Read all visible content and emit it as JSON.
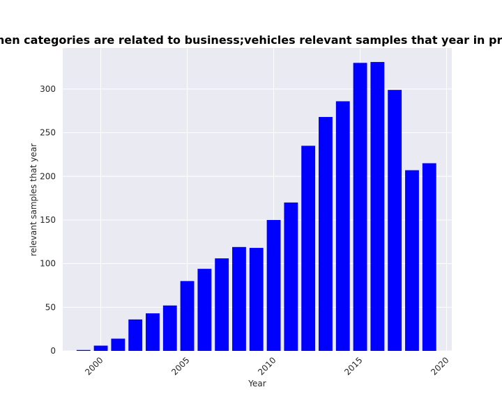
{
  "chart_data": {
    "type": "bar",
    "title": "Number of times when categories are related to business;vehicles relevant samples that year in privacy policies by year",
    "xlabel": "Year",
    "ylabel": "relevant samples that year",
    "x": [
      1999,
      2000,
      2001,
      2002,
      2003,
      2004,
      2005,
      2006,
      2007,
      2008,
      2009,
      2010,
      2011,
      2012,
      2013,
      2014,
      2015,
      2016,
      2017,
      2018,
      2019
    ],
    "values": [
      1,
      6,
      14,
      36,
      43,
      52,
      80,
      94,
      106,
      119,
      118,
      150,
      170,
      235,
      268,
      286,
      330,
      331,
      299,
      207,
      215
    ],
    "xlim": [
      1997.8,
      2020.3
    ],
    "ylim": [
      0,
      347
    ],
    "xticks": [
      "2000",
      "2005",
      "2010",
      "2015",
      "2020"
    ],
    "yticks": [
      "0",
      "50",
      "100",
      "150",
      "200",
      "250",
      "300"
    ],
    "bar_color": "#0000ff",
    "background_color": "#eaeaf2",
    "grid": true,
    "legend": false
  }
}
